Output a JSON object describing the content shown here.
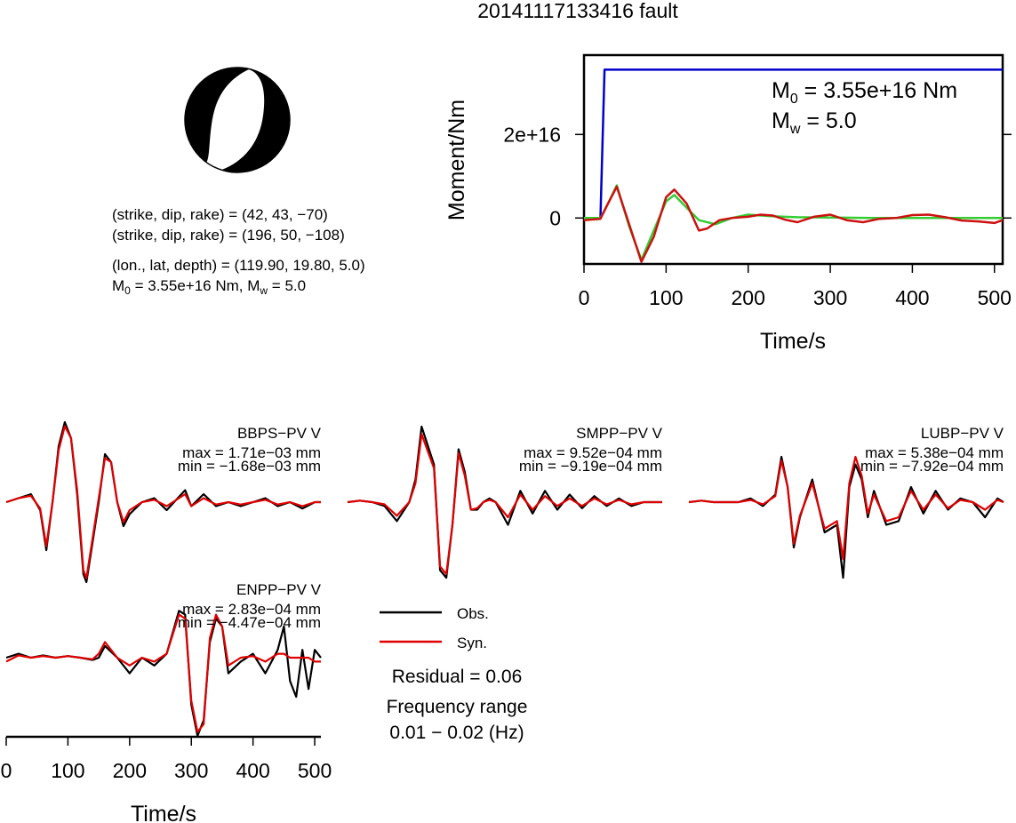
{
  "title": "20141117133416 fault",
  "source_info": {
    "plane1": "(strike, dip, rake) = (42, 43, −70)",
    "plane2": "(strike, dip, rake) = (196, 50, −108)",
    "location": "(lon., lat, depth) = (119.90, 19.80, 5.0)",
    "m0_prefix": "M",
    "m0_sub": "0",
    "m0_value": " = 3.55e+16 Nm, ",
    "mw_prefix": "M",
    "mw_sub": "w",
    "mw_value": " = 5.0"
  },
  "colors": {
    "observed": "#000000",
    "synthetic": "#e00000",
    "moment_cumulative": "#0000cc",
    "moment_rate_green": "#33cc33",
    "moment_rate_red": "#cc1111"
  },
  "legend": {
    "observed": "Obs.",
    "synthetic": "Syn."
  },
  "residual": "Residual = 0.06",
  "frequency_label": "Frequency range",
  "frequency_value": "0.01 − 0.02 (Hz)",
  "chart_data": [
    {
      "type": "line",
      "name": "moment_function",
      "xlabel": "Time/s",
      "ylabel": "Moment/Nm",
      "xlim": [
        0,
        510
      ],
      "ylim": [
        -1.1e+16,
        3.9e+16
      ],
      "xticks": [
        0,
        100,
        200,
        300,
        400,
        500
      ],
      "yticks": [
        0,
        2e+16
      ],
      "ytick_labels": [
        "0",
        "2e+16"
      ],
      "annotation_m0": {
        "prefix": "M",
        "sub": "0",
        "value": " = 3.55e+16 Nm"
      },
      "annotation_mw": {
        "prefix": "M",
        "sub": "w",
        "value": " = 5.0"
      },
      "series": [
        {
          "color": "#0000cc",
          "x": [
            0,
            20,
            25,
            510
          ],
          "y": [
            0,
            0,
            3.55e+16,
            3.55e+16
          ]
        },
        {
          "color": "#33cc33",
          "x": [
            0,
            20,
            28,
            40,
            55,
            70,
            85,
            100,
            110,
            125,
            140,
            160,
            180,
            200,
            230,
            260,
            300,
            350,
            400,
            450,
            510
          ],
          "y": [
            0,
            0,
            3000000000000000.0,
            7800000000000000.0,
            -2000000000000000.0,
            -1e+16,
            -3000000000000000.0,
            4000000000000000.0,
            5500000000000000.0,
            2500000000000000.0,
            -500000000000000.0,
            -1500000000000000.0,
            0.0,
            800000000000000.0,
            400000000000000.0,
            200000000000000.0,
            100000000000000.0,
            0.0,
            0.0,
            0.0,
            0.0
          ]
        },
        {
          "color": "#cc1111",
          "x": [
            0,
            20,
            28,
            40,
            55,
            70,
            85,
            100,
            110,
            125,
            140,
            150,
            165,
            180,
            200,
            215,
            230,
            245,
            260,
            280,
            300,
            320,
            340,
            360,
            380,
            400,
            420,
            440,
            460,
            480,
            500,
            510
          ],
          "y": [
            -500000000000000.0,
            -200000000000000.0,
            3000000000000000.0,
            7500000000000000.0,
            -1500000000000000.0,
            -1.05e+16,
            -4500000000000000.0,
            5000000000000000.0,
            6800000000000000.0,
            3500000000000000.0,
            -3000000000000000.0,
            -2500000000000000.0,
            -500000000000000.0,
            0.0,
            300000000000000.0,
            800000000000000.0,
            600000000000000.0,
            -400000000000000.0,
            -1000000000000000.0,
            300000000000000.0,
            800000000000000.0,
            -500000000000000.0,
            -1000000000000000.0,
            -200000000000000.0,
            0.0,
            700000000000000.0,
            800000000000000.0,
            200000000000000.0,
            -600000000000000.0,
            -800000000000000.0,
            -1200000000000000.0,
            -500000000000000.0
          ]
        }
      ]
    },
    {
      "type": "line",
      "name": "waveform_fits",
      "xlabel": "Time/s",
      "xlim": [
        0,
        510
      ],
      "xticks": [
        0,
        100,
        200,
        300,
        400,
        500
      ],
      "stations": [
        {
          "label": "BBPS−PV V",
          "max": "max = 1.71e−03 mm",
          "min": "min = −1.68e−03 mm",
          "obs": {
            "t": [
              0,
              20,
              40,
              55,
              65,
              75,
              85,
              95,
              105,
              115,
              125,
              130,
              140,
              150,
              160,
              170,
              180,
              190,
              200,
              220,
              240,
              260,
              290,
              300,
              320,
              340,
              360,
              380,
              400,
              420,
              440,
              460,
              480,
              500,
              510
            ],
            "v": [
              0,
              0.05,
              0.1,
              -0.1,
              -0.6,
              0.0,
              0.7,
              1.0,
              0.8,
              0.1,
              -0.9,
              -1.0,
              -0.5,
              0.0,
              0.6,
              0.5,
              0.0,
              -0.3,
              -0.15,
              0.0,
              0.05,
              -0.1,
              0.15,
              -0.05,
              0.1,
              -0.05,
              0.0,
              -0.05,
              0.0,
              0.05,
              -0.05,
              0.0,
              -0.08,
              0.0,
              0.0
            ]
          },
          "syn": {
            "t": [
              0,
              20,
              40,
              55,
              65,
              75,
              85,
              95,
              105,
              115,
              125,
              130,
              140,
              150,
              160,
              170,
              180,
              190,
              200,
              220,
              240,
              260,
              290,
              300,
              320,
              340,
              360,
              380,
              400,
              420,
              440,
              460,
              480,
              500,
              510
            ],
            "v": [
              0,
              0.05,
              0.08,
              -0.08,
              -0.55,
              0.0,
              0.65,
              0.95,
              0.8,
              0.15,
              -0.85,
              -0.95,
              -0.45,
              0.05,
              0.55,
              0.5,
              0.0,
              -0.25,
              -0.1,
              0.0,
              0.03,
              -0.05,
              0.1,
              -0.05,
              0.05,
              -0.03,
              0.0,
              -0.03,
              0.0,
              0.03,
              -0.03,
              0.0,
              -0.05,
              0.0,
              0.0
            ]
          }
        },
        {
          "label": "SMPP−PV V",
          "max": "max = 9.52e−04 mm",
          "min": "min = −9.19e−04 mm",
          "obs": {
            "t": [
              0,
              20,
              40,
              60,
              80,
              100,
              110,
              120,
              140,
              150,
              160,
              170,
              180,
              190,
              200,
              210,
              220,
              230,
              240,
              260,
              280,
              300,
              320,
              340,
              360,
              380,
              400,
              420,
              440,
              460,
              480,
              500,
              510
            ],
            "v": [
              0,
              0.02,
              0.0,
              -0.05,
              -0.25,
              0.0,
              0.3,
              1.0,
              0.5,
              -0.9,
              -1.0,
              -0.3,
              0.7,
              0.4,
              -0.1,
              -0.1,
              0.0,
              0.05,
              0.0,
              -0.3,
              0.15,
              -0.15,
              0.15,
              -0.1,
              0.1,
              -0.08,
              0.08,
              -0.05,
              0.05,
              -0.05,
              0.0,
              0.0,
              0.0
            ]
          },
          "syn": {
            "t": [
              0,
              20,
              40,
              60,
              80,
              100,
              110,
              120,
              140,
              150,
              160,
              170,
              180,
              190,
              200,
              210,
              220,
              230,
              240,
              260,
              280,
              300,
              320,
              340,
              360,
              380,
              400,
              420,
              440,
              460,
              480,
              500,
              510
            ],
            "v": [
              0,
              0.02,
              0.0,
              -0.03,
              -0.18,
              0.0,
              0.25,
              0.9,
              0.45,
              -0.85,
              -0.95,
              -0.3,
              0.65,
              0.35,
              -0.1,
              -0.08,
              0.0,
              0.03,
              0.0,
              -0.2,
              0.1,
              -0.1,
              0.08,
              -0.05,
              0.05,
              -0.05,
              0.05,
              -0.03,
              0.03,
              -0.03,
              0.0,
              0.0,
              0.0
            ]
          }
        },
        {
          "label": "LUBP−PV V",
          "max": "max = 5.38e−04 mm",
          "min": "min = −7.92e−04 mm",
          "obs": {
            "t": [
              0,
              20,
              40,
              60,
              80,
              100,
              120,
              140,
              150,
              160,
              170,
              180,
              200,
              220,
              240,
              250,
              260,
              270,
              280,
              290,
              300,
              320,
              340,
              360,
              380,
              400,
              420,
              440,
              460,
              480,
              500,
              510
            ],
            "v": [
              0,
              0.02,
              0.0,
              0.0,
              0.0,
              0.05,
              -0.05,
              0.1,
              0.6,
              0.2,
              -0.6,
              -0.2,
              0.3,
              -0.4,
              -0.3,
              -1.0,
              0.2,
              0.5,
              0.3,
              -0.2,
              0.15,
              -0.3,
              -0.25,
              0.2,
              -0.15,
              0.15,
              -0.1,
              0.05,
              0.0,
              -0.2,
              0.05,
              0.0
            ]
          },
          "syn": {
            "t": [
              0,
              20,
              40,
              60,
              80,
              100,
              120,
              140,
              150,
              160,
              170,
              180,
              200,
              220,
              240,
              250,
              260,
              270,
              280,
              290,
              300,
              320,
              340,
              360,
              380,
              400,
              420,
              440,
              460,
              480,
              500,
              510
            ],
            "v": [
              0,
              0.02,
              0.0,
              0.0,
              0.0,
              0.03,
              -0.03,
              0.08,
              0.55,
              0.2,
              -0.55,
              -0.18,
              0.25,
              -0.35,
              -0.25,
              -0.75,
              0.25,
              0.6,
              0.35,
              -0.15,
              0.1,
              -0.25,
              -0.2,
              0.15,
              -0.1,
              0.1,
              -0.08,
              0.03,
              0.0,
              -0.1,
              0.03,
              0.0
            ]
          }
        },
        {
          "label": "ENPP−PV V",
          "max": "max = 2.83e−04 mm",
          "min": "min = −4.47e−04 mm",
          "obs": {
            "t": [
              0,
              20,
              40,
              60,
              80,
              100,
              120,
              140,
              150,
              160,
              180,
              200,
              220,
              240,
              260,
              280,
              290,
              300,
              310,
              320,
              330,
              340,
              350,
              360,
              380,
              400,
              420,
              440,
              450,
              460,
              470,
              480,
              490,
              500,
              510
            ],
            "v": [
              0,
              0.05,
              0.0,
              0.03,
              0.0,
              0.02,
              0.0,
              -0.03,
              0.0,
              0.15,
              0.0,
              -0.2,
              0.0,
              -0.1,
              0.05,
              0.6,
              0.55,
              -0.6,
              -1.0,
              -0.8,
              0.2,
              0.5,
              0.4,
              -0.2,
              -0.05,
              0.05,
              -0.2,
              0.1,
              0.4,
              -0.3,
              -0.5,
              0.1,
              -0.4,
              0.1,
              0.0
            ]
          },
          "syn": {
            "t": [
              0,
              20,
              40,
              60,
              80,
              100,
              120,
              140,
              150,
              160,
              180,
              200,
              220,
              240,
              260,
              280,
              290,
              300,
              310,
              320,
              330,
              340,
              350,
              360,
              380,
              400,
              420,
              440,
              450,
              460,
              470,
              480,
              490,
              500,
              510
            ],
            "v": [
              -0.05,
              0.03,
              0.0,
              0.02,
              0.0,
              0.02,
              0.0,
              -0.02,
              0.05,
              0.2,
              0.0,
              -0.1,
              0.0,
              -0.05,
              0.05,
              0.55,
              0.5,
              -0.55,
              -0.95,
              -0.85,
              0.25,
              0.55,
              0.4,
              -0.1,
              0.0,
              0.02,
              -0.05,
              0.05,
              0.05,
              0.0,
              0.0,
              0.0,
              0.0,
              -0.05,
              -0.05
            ]
          }
        }
      ]
    }
  ]
}
